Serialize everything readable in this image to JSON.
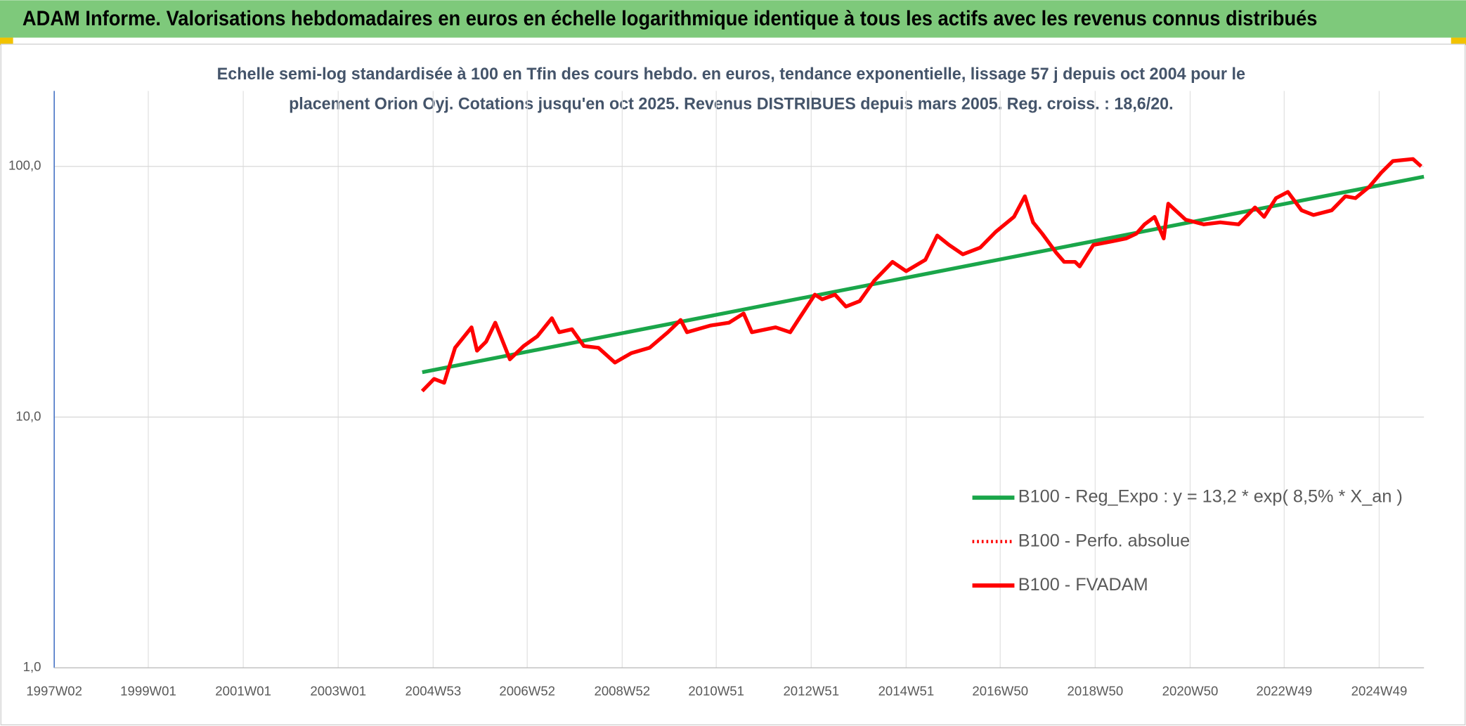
{
  "chart_data": {
    "type": "line",
    "title": "ADAM Informe. Valorisations hebdomadaires en euros en échelle logarithmique identique à tous les actifs avec les revenus connus distribués",
    "subtitle": [
      "Echelle semi-log standardisée à 100 en Tfin des cours hebdo. en euros, tendance exponentielle, lissage 57 j depuis oct 2004 pour le",
      "placement Orion Oyj. Cotations jusqu'en oct 2025. Revenus DISTRIBUES depuis mars 2005. Reg. croiss. : 18,6/20."
    ],
    "log_scale": true,
    "grid": true,
    "legend": "lower right",
    "xlim": [
      "1997W02",
      "2025W46"
    ],
    "xticks": [
      "1997W02",
      "1999W01",
      "2001W01",
      "2003W01",
      "2004W53",
      "2006W52",
      "2008W52",
      "2010W51",
      "2012W51",
      "2014W51",
      "2016W50",
      "2018W50",
      "2020W50",
      "2022W49",
      "2024W49"
    ],
    "ylim": [
      1,
      200
    ],
    "yticks": [
      {
        "value": 1,
        "label": "1,0"
      },
      {
        "value": 10,
        "label": "10,0"
      },
      {
        "value": 100,
        "label": "100,0"
      }
    ],
    "series": [
      {
        "name": "B100 - Reg_Expo : y = 13,2 * exp( 8,5% *  X_an )",
        "color": "#1aa64a",
        "dash": "solid",
        "x": [
          "2004W41",
          "2025W46"
        ],
        "values": [
          15.1,
          91
        ]
      },
      {
        "name": "B100 - Perfo. absolue",
        "color": "#ff0000",
        "dash": "dotted",
        "x": [],
        "values": []
      },
      {
        "name": "B100 - FVADAM",
        "color": "#ff0000",
        "dash": "solid",
        "x": [
          "2004W41",
          "2005W02",
          "2005W13",
          "2005W25",
          "2005W43",
          "2005W49",
          "2006W07",
          "2006W17",
          "2006W33",
          "2006W48",
          "2007W11",
          "2007W27",
          "2007W35",
          "2007W49",
          "2008W10",
          "2008W26",
          "2008W44",
          "2009W10",
          "2009W30",
          "2009W50",
          "2010W12",
          "2010W19",
          "2010W45",
          "2011W13",
          "2011W29",
          "2011W38",
          "2012W12",
          "2012W28",
          "2012W38",
          "2013W03",
          "2013W11",
          "2013W25",
          "2013W37",
          "2013W52",
          "2014W16",
          "2014W36",
          "2014W51",
          "2015W20",
          "2015W33",
          "2015W46",
          "2016W09",
          "2016W28",
          "2016W45",
          "2017W13",
          "2017W25",
          "2017W34",
          "2017W44",
          "2018W07",
          "2018W16",
          "2018W28",
          "2018W33",
          "2018W48",
          "2019W17",
          "2019W32",
          "2019W43",
          "2019W52",
          "2020W11",
          "2020W21",
          "2020W26",
          "2020W45",
          "2021W13",
          "2021W31",
          "2021W51",
          "2022W17",
          "2022W27",
          "2022W40",
          "2023W01",
          "2023W16",
          "2023W29",
          "2023W49",
          "2024W12",
          "2024W23",
          "2024W38",
          "2024W51",
          "2025W12",
          "2025W34",
          "2025W43"
        ],
        "values": [
          12.7,
          14.2,
          13.7,
          18.9,
          22.8,
          18.4,
          20,
          23.8,
          17,
          19.2,
          21,
          24.8,
          21.8,
          22.4,
          19.2,
          18.9,
          16.5,
          18,
          18.9,
          21.8,
          24.4,
          21.8,
          23.2,
          23.8,
          25.9,
          21.8,
          22.8,
          21.8,
          24.8,
          30.8,
          29.5,
          30.8,
          27.6,
          29,
          35,
          41.6,
          38.2,
          42.4,
          53,
          48.6,
          44.6,
          47.4,
          54.8,
          62.9,
          76,
          59.8,
          53.9,
          45.4,
          41.6,
          41.6,
          39.9,
          48.6,
          50.3,
          51.6,
          53.9,
          58.7,
          62.9,
          51.6,
          71,
          61.3,
          58.7,
          59.8,
          58.7,
          68.6,
          62.9,
          74.7,
          79.1,
          66.8,
          64,
          66.8,
          76,
          74.7,
          82.8,
          94.2,
          105,
          107,
          100
        ]
      }
    ]
  }
}
